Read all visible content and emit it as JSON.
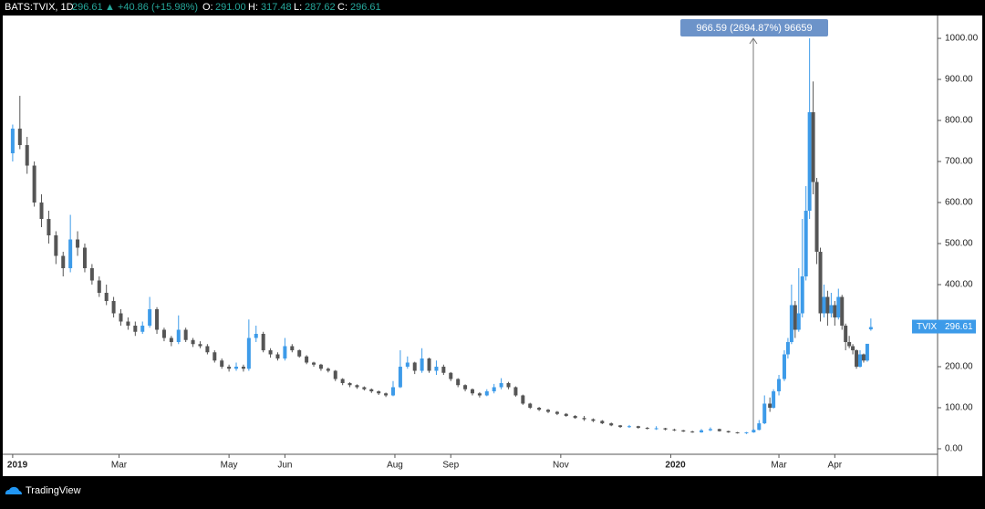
{
  "header": {
    "symbol": "BATS:TVIX, 1D",
    "last": "296.61",
    "change": "▲ +40.86 (+15.98%)",
    "o_label": "O:",
    "o": "291.00",
    "h_label": "H:",
    "h": "317.48",
    "l_label": "L:",
    "l": "287.62",
    "c_label": "C:",
    "c": "296.61"
  },
  "footer": {
    "brand": "TradingView"
  },
  "chart_data": {
    "type": "candlestick",
    "symbol_label": "TVIX",
    "annotation": "966.59 (2694.87%) 96659",
    "up_color": "#3d9be9",
    "down_color": "#555555",
    "grid": false,
    "xlim": [
      -4.5,
      513
    ],
    "ylim": [
      -13.4,
      1055.7
    ],
    "xticks": [
      {
        "value": 0,
        "label": "2019"
      },
      {
        "value": 59,
        "label": "Mar"
      },
      {
        "value": 120,
        "label": "May"
      },
      {
        "value": 151,
        "label": "Jun"
      },
      {
        "value": 212,
        "label": "Aug"
      },
      {
        "value": 243,
        "label": "Sep"
      },
      {
        "value": 304,
        "label": "Nov"
      },
      {
        "value": 365,
        "label": "2020"
      },
      {
        "value": 425,
        "label": "Mar"
      },
      {
        "value": 456,
        "label": "Apr"
      }
    ],
    "yticks": [
      {
        "value": 0,
        "label": "0.00"
      },
      {
        "value": 100,
        "label": "100.00"
      },
      {
        "value": 200,
        "label": "200.00"
      },
      {
        "value": 300,
        "label": "300.00"
      },
      {
        "value": 400,
        "label": "400.00"
      },
      {
        "value": 500,
        "label": "500.00"
      },
      {
        "value": 600,
        "label": "600.00"
      },
      {
        "value": 700,
        "label": "700.00"
      },
      {
        "value": 800,
        "label": "800.00"
      },
      {
        "value": 900,
        "label": "900.00"
      },
      {
        "value": 1000,
        "label": "1000.00"
      }
    ],
    "x": [
      0,
      4,
      8,
      12,
      16,
      20,
      24,
      28,
      32,
      36,
      40,
      44,
      48,
      52,
      56,
      60,
      64,
      68,
      72,
      76,
      80,
      84,
      88,
      92,
      96,
      100,
      104,
      108,
      112,
      116,
      120,
      124,
      128,
      131,
      135,
      139,
      143,
      147,
      151,
      155,
      159,
      163,
      167,
      171,
      175,
      179,
      183,
      187,
      191,
      195,
      199,
      203,
      207,
      211,
      215,
      219,
      223,
      227,
      231,
      235,
      239,
      243,
      247,
      251,
      255,
      259,
      263,
      267,
      271,
      275,
      279,
      283,
      287,
      292,
      297,
      302,
      307,
      312,
      317,
      322,
      327,
      332,
      337,
      342,
      347,
      352,
      357,
      362,
      367,
      372,
      377,
      382,
      387,
      392,
      397,
      402,
      407,
      411,
      414,
      417,
      420,
      422,
      425,
      428,
      430,
      432,
      434,
      436,
      438,
      440,
      442,
      444,
      446,
      448,
      450,
      452,
      454,
      456,
      458,
      460,
      462,
      464,
      466,
      468,
      470,
      472,
      474,
      476
    ],
    "open": [
      720,
      780,
      740,
      690,
      600,
      560,
      520,
      470,
      440,
      510,
      490,
      440,
      410,
      380,
      360,
      330,
      310,
      300,
      285,
      300,
      340,
      290,
      270,
      260,
      290,
      265,
      255,
      250,
      235,
      215,
      200,
      195,
      200,
      195,
      270,
      280,
      240,
      230,
      220,
      250,
      240,
      225,
      210,
      205,
      195,
      190,
      170,
      160,
      155,
      150,
      145,
      140,
      135,
      130,
      150,
      200,
      210,
      190,
      220,
      190,
      200,
      185,
      170,
      155,
      145,
      135,
      130,
      140,
      150,
      160,
      150,
      130,
      110,
      100,
      95,
      90,
      85,
      80,
      75,
      72,
      68,
      62,
      57,
      53,
      55,
      51,
      49,
      50,
      47,
      45,
      42,
      40,
      45,
      48,
      43,
      40,
      38,
      40,
      46,
      62,
      110,
      100,
      140,
      170,
      230,
      260,
      350,
      290,
      330,
      420,
      580,
      820,
      650,
      480,
      330,
      370,
      330,
      350,
      320,
      370,
      300,
      260,
      250,
      240,
      200,
      230,
      215,
      291
    ],
    "high": [
      790,
      860,
      760,
      700,
      620,
      580,
      530,
      480,
      570,
      530,
      500,
      450,
      420,
      400,
      370,
      340,
      320,
      310,
      310,
      370,
      345,
      295,
      275,
      325,
      295,
      270,
      262,
      255,
      240,
      220,
      205,
      210,
      205,
      315,
      300,
      285,
      245,
      235,
      270,
      255,
      242,
      228,
      212,
      207,
      198,
      192,
      172,
      162,
      157,
      152,
      147,
      142,
      137,
      165,
      240,
      225,
      212,
      245,
      222,
      215,
      205,
      187,
      172,
      157,
      147,
      138,
      145,
      158,
      172,
      163,
      152,
      132,
      112,
      102,
      97,
      92,
      87,
      82,
      80,
      74,
      70,
      64,
      58,
      58,
      56,
      53,
      55,
      51,
      49,
      46,
      44,
      48,
      52,
      49,
      44,
      41,
      41,
      48,
      70,
      130,
      125,
      145,
      180,
      240,
      270,
      400,
      360,
      440,
      560,
      640,
      1000,
      895,
      660,
      490,
      400,
      385,
      380,
      360,
      390,
      375,
      305,
      275,
      255,
      242,
      240,
      232,
      255,
      317.48
    ],
    "low": [
      700,
      730,
      670,
      590,
      540,
      500,
      450,
      420,
      430,
      470,
      430,
      400,
      370,
      350,
      320,
      300,
      290,
      275,
      280,
      295,
      280,
      262,
      250,
      255,
      260,
      248,
      245,
      230,
      210,
      195,
      188,
      190,
      188,
      190,
      260,
      235,
      222,
      215,
      215,
      235,
      222,
      206,
      200,
      190,
      186,
      165,
      155,
      150,
      146,
      142,
      136,
      131,
      126,
      128,
      148,
      195,
      182,
      185,
      185,
      180,
      180,
      165,
      150,
      140,
      130,
      125,
      128,
      135,
      145,
      145,
      127,
      107,
      97,
      92,
      87,
      82,
      78,
      73,
      68,
      65,
      60,
      55,
      51,
      51,
      49,
      47,
      46,
      45,
      43,
      41,
      39,
      39,
      43,
      42,
      39,
      37,
      36,
      39,
      45,
      60,
      90,
      98,
      130,
      165,
      220,
      255,
      270,
      285,
      320,
      410,
      560,
      620,
      450,
      310,
      320,
      300,
      320,
      300,
      315,
      290,
      240,
      245,
      230,
      195,
      198,
      210,
      212,
      287.62
    ],
    "close": [
      780,
      740,
      690,
      600,
      560,
      520,
      470,
      440,
      510,
      490,
      440,
      410,
      380,
      360,
      330,
      310,
      300,
      285,
      300,
      340,
      290,
      270,
      260,
      290,
      265,
      255,
      250,
      235,
      215,
      200,
      195,
      200,
      195,
      270,
      280,
      240,
      230,
      220,
      250,
      240,
      225,
      210,
      205,
      195,
      190,
      170,
      160,
      155,
      150,
      145,
      140,
      135,
      130,
      150,
      200,
      210,
      190,
      220,
      190,
      200,
      185,
      170,
      155,
      145,
      135,
      130,
      140,
      150,
      160,
      150,
      130,
      110,
      100,
      95,
      90,
      85,
      80,
      75,
      72,
      68,
      62,
      57,
      53,
      55,
      51,
      49,
      50,
      47,
      45,
      42,
      40,
      45,
      48,
      43,
      40,
      38,
      40,
      46,
      62,
      110,
      100,
      140,
      170,
      230,
      260,
      350,
      290,
      330,
      420,
      580,
      820,
      650,
      480,
      330,
      370,
      330,
      350,
      320,
      370,
      300,
      260,
      250,
      240,
      200,
      230,
      215,
      255.75,
      296.61
    ]
  }
}
